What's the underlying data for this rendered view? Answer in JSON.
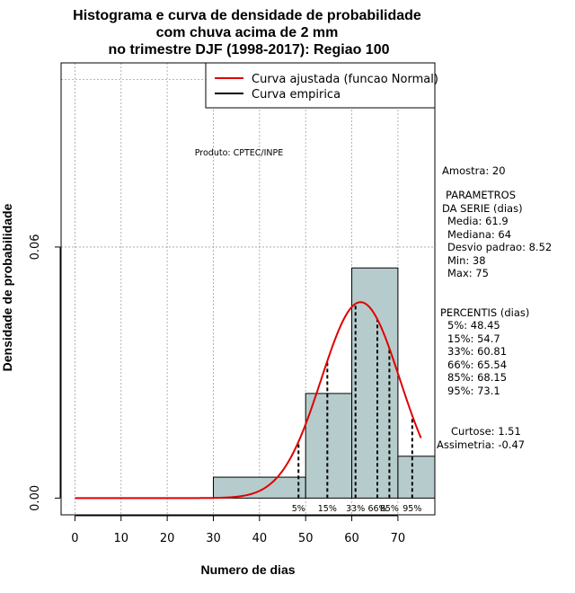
{
  "colors": {
    "bar_fill": "#b6cccc",
    "curve": "#e00000",
    "grid": "#a0a0a0",
    "axis": "#000000"
  },
  "chart_data": {
    "type": "histogram",
    "title_lines": [
      "Histograma e curva de densidade de probabilidade",
      "com chuva acima de 2 mm",
      "no trimestre DJF (1998-2017): Regiao 100"
    ],
    "xlabel": "Numero de dias",
    "ylabel": "Densidade de probabilidade",
    "xlim": [
      -3,
      78
    ],
    "ylim": [
      -0.004,
      0.104
    ],
    "x_ticks": [
      0,
      10,
      20,
      30,
      40,
      50,
      60,
      70
    ],
    "y_ticks": [
      0.0,
      0.06
    ],
    "y_tick_labels": [
      "0.00",
      "0.06"
    ],
    "grid_x": [
      0,
      10,
      20,
      30,
      40,
      50,
      60,
      70
    ],
    "grid_y": [
      0.06,
      0.1
    ],
    "bins": [
      {
        "from": 30,
        "to": 50,
        "density": 0.005
      },
      {
        "from": 50,
        "to": 60,
        "density": 0.025
      },
      {
        "from": 60,
        "to": 70,
        "density": 0.055
      },
      {
        "from": 70,
        "to": 80,
        "density": 0.01
      }
    ],
    "fitted_normal": {
      "mean": 61.9,
      "sd": 8.52,
      "x_from": 0,
      "x_to": 75
    },
    "percentile_lines": [
      {
        "label": "5%",
        "x": 48.45
      },
      {
        "label": "15%",
        "x": 54.7
      },
      {
        "label": "33%",
        "x": 60.81
      },
      {
        "label": "66%",
        "x": 65.54
      },
      {
        "label": "85%",
        "x": 68.15
      },
      {
        "label": "95%",
        "x": 73.1
      }
    ],
    "legend": {
      "placement": "top-right",
      "entries": [
        "Curva ajustada (funcao Normal)",
        "Curva empirica"
      ]
    },
    "annotation": "Produto: CPTEC/INPE"
  },
  "stats": {
    "sample": "Amostra: 20",
    "params_header_1": "PARAMETROS",
    "params_header_2": "DA SERIE (dias)",
    "params": [
      "Media: 61.9",
      "Mediana: 64",
      "Desvio padrao: 8.52",
      "Min: 38",
      "Max: 75"
    ],
    "percentis_header": "PERCENTIS (dias)",
    "percentis": [
      "5%: 48.45",
      "15%: 54.7",
      "33%: 60.81",
      "66%: 65.54",
      "85%: 68.15",
      "95%: 73.1"
    ],
    "curtose": "Curtose: 1.51",
    "assimetria": "Assimetria: -0.47"
  }
}
